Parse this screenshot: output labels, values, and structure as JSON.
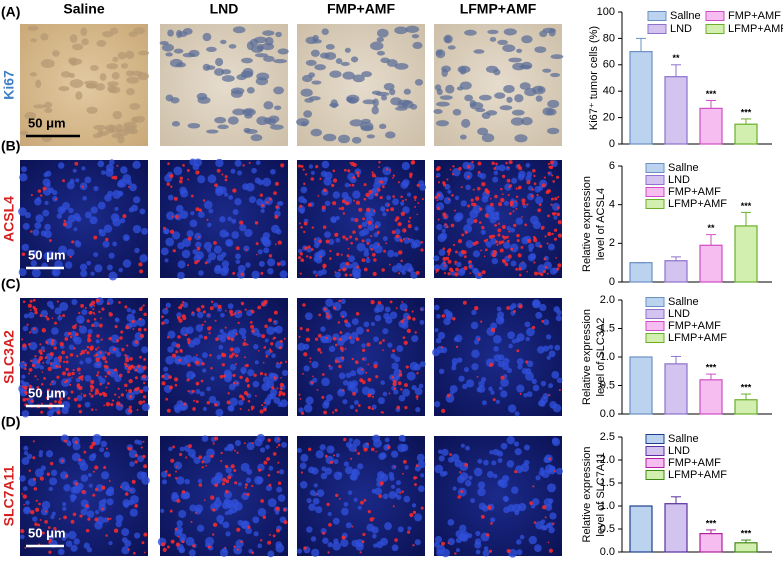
{
  "figure": {
    "column_titles": [
      "Saline",
      "LND",
      "FMP+AMF",
      "LFMP+AMF"
    ],
    "rows": [
      {
        "label": "(A)",
        "stain": "Ki67",
        "stain_color": "#3f7fc6",
        "scale_bar": "50 μm"
      },
      {
        "label": "(B)",
        "stain": "ACSL4",
        "stain_color": "#d42020",
        "scale_bar": "50 μm"
      },
      {
        "label": "(C)",
        "stain": "SLC3A2",
        "stain_color": "#d42020",
        "scale_bar": "50 μm"
      },
      {
        "label": "(D)",
        "stain": "SLC7A11",
        "stain_color": "#d42020",
        "scale_bar": "50 μm"
      }
    ]
  },
  "chart_data": [
    {
      "type": "bar",
      "ylabel": [
        "Ki67⁺ tumor cells (%)"
      ],
      "categories": [
        "Sallne",
        "LND",
        "FMP+AMF",
        "LFMP+AMF"
      ],
      "values": [
        70,
        51,
        27,
        15
      ],
      "errors": [
        10,
        9,
        6,
        4
      ],
      "sig_labels": [
        null,
        "**",
        "***",
        "***"
      ],
      "colors": [
        "#bcd3ef",
        "#d2c4ee",
        "#f6bdf0",
        "#d3efaf"
      ],
      "edge_colors": [
        "#6b90c4",
        "#8e72cc",
        "#d04cc4",
        "#6cae2c"
      ],
      "ylim": [
        0,
        100
      ],
      "yticks": [
        0,
        20,
        40,
        60,
        80,
        100
      ],
      "legend_columns": 2
    },
    {
      "type": "bar",
      "ylabel": [
        "Relative expression",
        "level of ACSL4"
      ],
      "categories": [
        "Sallne",
        "LND",
        "FMP+AMF",
        "LFMP+AMF"
      ],
      "values": [
        1,
        1.1,
        1.9,
        2.9
      ],
      "errors": [
        0,
        0.2,
        0.55,
        0.7
      ],
      "sig_labels": [
        null,
        null,
        "**",
        "***"
      ],
      "colors": [
        "#bcd3ef",
        "#d2c4ee",
        "#f6bdf0",
        "#d3efaf"
      ],
      "edge_colors": [
        "#6b90c4",
        "#8e72cc",
        "#d04cc4",
        "#6cae2c"
      ],
      "ylim": [
        0,
        6
      ],
      "yticks": [
        0,
        2,
        4,
        6
      ],
      "legend_columns": 1
    },
    {
      "type": "bar",
      "ylabel": [
        "Relative expression",
        "level of SLC3A2"
      ],
      "categories": [
        "Sallne",
        "LND",
        "FMP+AMF",
        "LFMP+AMF"
      ],
      "values": [
        1.0,
        0.88,
        0.6,
        0.25
      ],
      "errors": [
        0,
        0.13,
        0.1,
        0.1
      ],
      "sig_labels": [
        null,
        null,
        "***",
        "***"
      ],
      "colors": [
        "#bcd3ef",
        "#d2c4ee",
        "#f6bdf0",
        "#d3efaf"
      ],
      "edge_colors": [
        "#6b90c4",
        "#8e72cc",
        "#d04cc4",
        "#6cae2c"
      ],
      "ylim": [
        0,
        2.0
      ],
      "yticks": [
        {
          "value": 0,
          "label": "0.0"
        },
        0.5,
        {
          "value": 1,
          "label": "1.0"
        },
        1.5,
        {
          "value": 2,
          "label": "2.0"
        }
      ],
      "legend_columns": 1
    },
    {
      "type": "bar",
      "ylabel": [
        "Relative expression",
        "level of SLC7A11"
      ],
      "categories": [
        "Sallne",
        "LND",
        "FMP+AMF",
        "LFMP+AMF"
      ],
      "values": [
        1.0,
        1.05,
        0.4,
        0.2
      ],
      "errors": [
        0,
        0.15,
        0.08,
        0.06
      ],
      "sig_labels": [
        null,
        null,
        "***",
        "***"
      ],
      "colors": [
        "#bcd3ef",
        "#d2c4ee",
        "#f6bdf0",
        "#d3efaf"
      ],
      "edge_colors": [
        "#1f3f8c",
        "#5a2f9e",
        "#b0209f",
        "#3f8a14"
      ],
      "ylim": [
        0,
        2.5
      ],
      "yticks": [
        {
          "value": 0,
          "label": "0.0"
        },
        0.5,
        {
          "value": 1,
          "label": "1.0"
        },
        1.5,
        {
          "value": 2,
          "label": "2.0"
        },
        2.5
      ],
      "legend_columns": 1
    }
  ]
}
